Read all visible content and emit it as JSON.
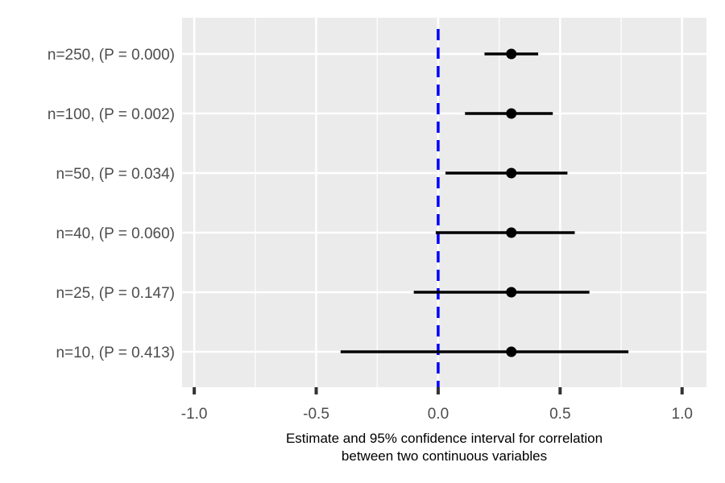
{
  "chart_data": {
    "type": "forest",
    "title": "",
    "xlabel_lines": [
      "Estimate and 95% confidence interval for correlation",
      "between two continuous variables"
    ],
    "ylabel": "",
    "xlim": [
      -1.05,
      1.1
    ],
    "xticks": [
      -1.0,
      -0.5,
      0.0,
      0.5,
      1.0
    ],
    "xtick_labels": [
      "-1.0",
      "-0.5",
      "0.0",
      "0.5",
      "1.0"
    ],
    "reference_line": {
      "x": 0.0,
      "style": "dashed",
      "color": "#0000ff"
    },
    "grid": true,
    "colors": {
      "panel": "#ebebeb",
      "grid": "#ffffff",
      "point": "#000000",
      "axis_text": "#4d4d4d"
    },
    "rows": [
      {
        "label": "n=250, (P = 0.000)",
        "estimate": 0.3,
        "lower": 0.19,
        "upper": 0.41
      },
      {
        "label": "n=100, (P = 0.002)",
        "estimate": 0.3,
        "lower": 0.11,
        "upper": 0.47
      },
      {
        "label": "n=50, (P = 0.034)",
        "estimate": 0.3,
        "lower": 0.03,
        "upper": 0.53
      },
      {
        "label": "n=40, (P = 0.060)",
        "estimate": 0.3,
        "lower": -0.01,
        "upper": 0.56
      },
      {
        "label": "n=25, (P = 0.147)",
        "estimate": 0.3,
        "lower": -0.1,
        "upper": 0.62
      },
      {
        "label": "n=10, (P = 0.413)",
        "estimate": 0.3,
        "lower": -0.4,
        "upper": 0.78
      }
    ]
  }
}
